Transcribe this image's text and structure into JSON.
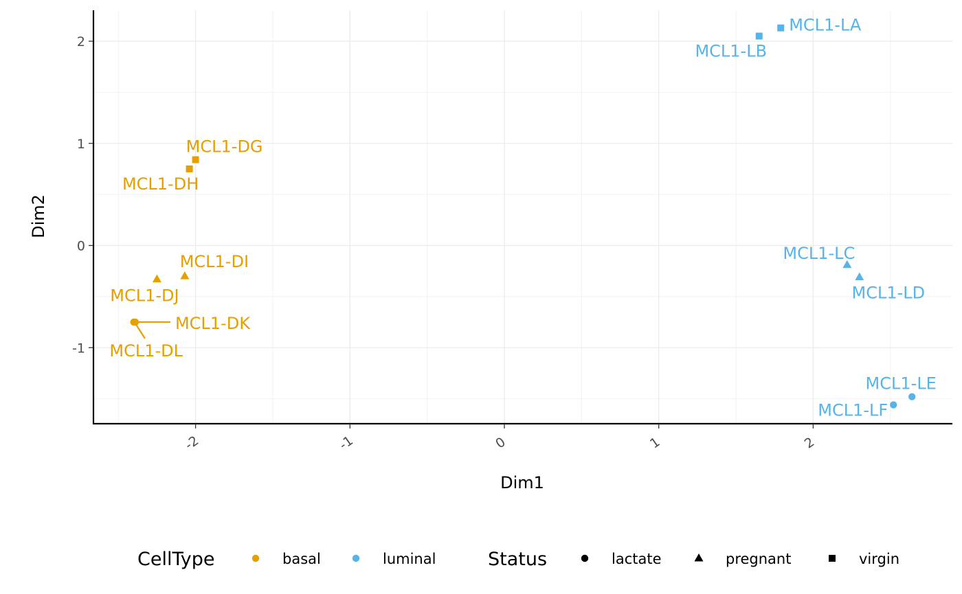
{
  "colors": {
    "basal": "#E69F00",
    "luminal": "#56B4E9"
  },
  "chart_data": {
    "type": "scatter",
    "xlabel": "Dim1",
    "ylabel": "Dim2",
    "xlim": [
      -2.65,
      2.9
    ],
    "ylim": [
      -1.75,
      2.3
    ],
    "x_ticks": [
      -2,
      -1,
      0,
      1,
      2
    ],
    "y_ticks": [
      -1,
      0,
      1,
      2
    ],
    "grid": true,
    "legend_position": "bottom",
    "points": [
      {
        "label": "MCL1-DG",
        "x": -2.0,
        "y": 0.84,
        "cell_type": "basal",
        "status": "virgin"
      },
      {
        "label": "MCL1-DH",
        "x": -2.04,
        "y": 0.75,
        "cell_type": "basal",
        "status": "virgin"
      },
      {
        "label": "MCL1-DI",
        "x": -2.07,
        "y": -0.3,
        "cell_type": "basal",
        "status": "pregnant"
      },
      {
        "label": "MCL1-DJ",
        "x": -2.25,
        "y": -0.33,
        "cell_type": "basal",
        "status": "pregnant"
      },
      {
        "label": "MCL1-DK",
        "x": -2.39,
        "y": -0.75,
        "cell_type": "basal",
        "status": "lactate"
      },
      {
        "label": "MCL1-DL",
        "x": -2.4,
        "y": -0.75,
        "cell_type": "basal",
        "status": "lactate"
      },
      {
        "label": "MCL1-LA",
        "x": 1.79,
        "y": 2.13,
        "cell_type": "luminal",
        "status": "virgin"
      },
      {
        "label": "MCL1-LB",
        "x": 1.65,
        "y": 2.05,
        "cell_type": "luminal",
        "status": "virgin"
      },
      {
        "label": "MCL1-LC",
        "x": 2.22,
        "y": -0.19,
        "cell_type": "luminal",
        "status": "pregnant"
      },
      {
        "label": "MCL1-LD",
        "x": 2.3,
        "y": -0.31,
        "cell_type": "luminal",
        "status": "pregnant"
      },
      {
        "label": "MCL1-LE",
        "x": 2.64,
        "y": -1.48,
        "cell_type": "luminal",
        "status": "lactate"
      },
      {
        "label": "MCL1-LF",
        "x": 2.52,
        "y": -1.56,
        "cell_type": "luminal",
        "status": "lactate"
      }
    ],
    "legends": [
      {
        "title": "CellType",
        "items": [
          {
            "label": "basal",
            "symbol": "circle",
            "color": "#E69F00"
          },
          {
            "label": "luminal",
            "symbol": "circle",
            "color": "#56B4E9"
          }
        ]
      },
      {
        "title": "Status",
        "items": [
          {
            "label": "lactate",
            "symbol": "circle",
            "color": "#000000"
          },
          {
            "label": "pregnant",
            "symbol": "triangle",
            "color": "#000000"
          },
          {
            "label": "virgin",
            "symbol": "square",
            "color": "#000000"
          }
        ]
      }
    ]
  }
}
